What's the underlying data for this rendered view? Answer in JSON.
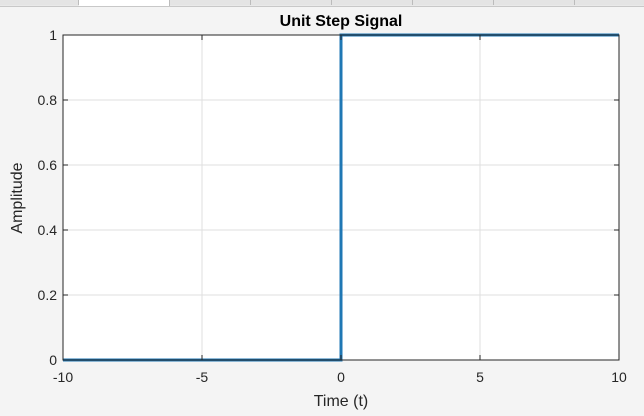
{
  "window": {
    "tabs": [
      "",
      "",
      "",
      "",
      "",
      "",
      "",
      ""
    ],
    "active_tab": 1
  },
  "chart_data": {
    "type": "line",
    "title": "Unit Step Signal",
    "xlabel": "Time (t)",
    "ylabel": "Amplitude",
    "xlim": [
      -10,
      10
    ],
    "ylim": [
      0,
      1
    ],
    "xticks": [
      -10,
      -5,
      0,
      5,
      10
    ],
    "xtick_labels": [
      "-10",
      "-5",
      "0",
      "5",
      "10"
    ],
    "yticks": [
      0,
      0.2,
      0.4,
      0.6,
      0.8,
      1
    ],
    "ytick_labels": [
      "0",
      "0.2",
      "0.4",
      "0.6",
      "0.8",
      "1"
    ],
    "grid": true,
    "series": [
      {
        "color": "#1f77b4",
        "x": [
          -10,
          0,
          0,
          10
        ],
        "y": [
          0,
          0,
          1,
          1
        ]
      }
    ]
  }
}
